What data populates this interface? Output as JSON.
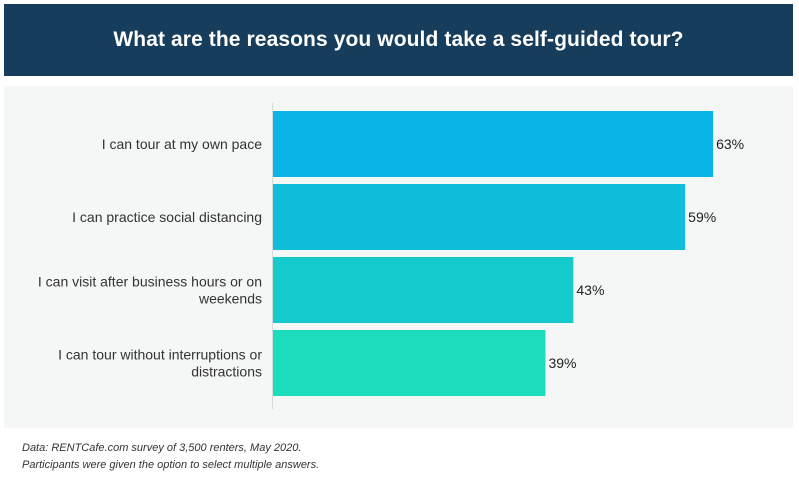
{
  "header": {
    "title": "What are the reasons you would take a self-guided tour?"
  },
  "chart_data": {
    "type": "bar",
    "orientation": "horizontal",
    "title": "What are the reasons you would take a self-guided tour?",
    "categories": [
      [
        "I can tour at my own pace"
      ],
      [
        "I can practice social distancing"
      ],
      [
        "I can visit after business hours or on",
        "weekends"
      ],
      [
        "I can tour without interruptions or",
        "distractions"
      ]
    ],
    "values": [
      63,
      59,
      43,
      39
    ],
    "value_labels": [
      "63%",
      "59%",
      "43%",
      "39%"
    ],
    "unit": "%",
    "xlim": [
      0,
      70
    ],
    "colors": [
      "#09b5e6",
      "#10bdda",
      "#14cacc",
      "#1cdcbe"
    ],
    "grid": false,
    "xlabel": "",
    "ylabel": ""
  },
  "footnotes": {
    "source": "Data: RENTCafe.com survey of 3,500 renters, May 2020.",
    "note": "Participants were given the option to select multiple answers."
  }
}
